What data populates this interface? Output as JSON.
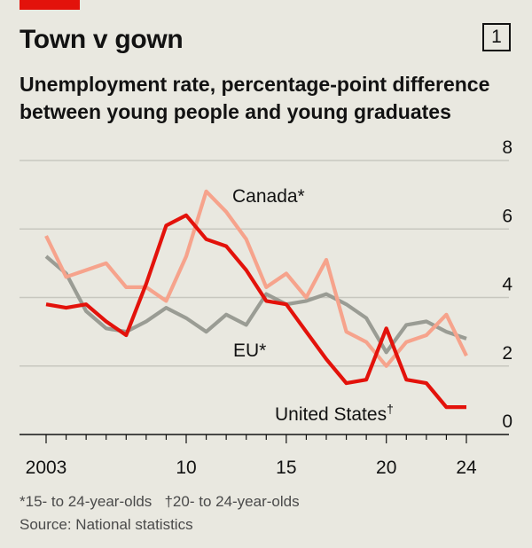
{
  "header": {
    "title": "Town v gown",
    "chart_number": "1",
    "subtitle_line1": "Unemployment rate, percentage-point difference",
    "subtitle_line2": "between young people and young graduates"
  },
  "footnotes": {
    "note": "*15- to 24-year-olds   †20- to 24-year-olds",
    "source": "Source: National statistics"
  },
  "colors": {
    "united_states": "#e3120b",
    "canada": "#f6a38c",
    "eu": "#9a9c94",
    "grid": "#c8c7bf",
    "axis": "#121212",
    "background": "#e9e8e0"
  },
  "chart_data": {
    "type": "line",
    "title": "Town v gown",
    "subtitle": "Unemployment rate, percentage-point difference between young people and young graduates",
    "x_tick_labels": [
      "2003",
      "10",
      "15",
      "20",
      "24"
    ],
    "x_tick_years": [
      2003,
      2010,
      2015,
      2020,
      2024
    ],
    "xlim": [
      2002,
      2025
    ],
    "ylim": [
      0,
      8
    ],
    "y_ticks": [
      0,
      2,
      4,
      6,
      8
    ],
    "grid": true,
    "y_axis_side": "right",
    "series": [
      {
        "name": "United States†",
        "key": "united_states",
        "x": [
          2003,
          2004,
          2005,
          2006,
          2007,
          2008,
          2009,
          2010,
          2011,
          2012,
          2013,
          2014,
          2015,
          2016,
          2017,
          2018,
          2019,
          2020,
          2021,
          2022,
          2023,
          2024
        ],
        "values": [
          3.8,
          3.7,
          3.8,
          3.3,
          2.9,
          4.4,
          6.1,
          6.4,
          5.7,
          5.5,
          4.8,
          3.9,
          3.8,
          3.0,
          2.2,
          1.5,
          1.6,
          3.1,
          1.6,
          1.5,
          0.8,
          0.8
        ]
      },
      {
        "name": "Canada*",
        "key": "canada",
        "x": [
          2003,
          2004,
          2005,
          2006,
          2007,
          2008,
          2009,
          2010,
          2011,
          2012,
          2013,
          2014,
          2015,
          2016,
          2017,
          2018,
          2019,
          2020,
          2021,
          2022,
          2023,
          2024
        ],
        "values": [
          5.8,
          4.6,
          4.8,
          5.0,
          4.3,
          4.3,
          3.9,
          5.2,
          7.1,
          6.5,
          5.7,
          4.3,
          4.7,
          4.0,
          5.1,
          3.0,
          2.7,
          2.0,
          2.7,
          2.9,
          3.5,
          2.3
        ]
      },
      {
        "name": "EU*",
        "key": "eu",
        "x": [
          2003,
          2004,
          2005,
          2006,
          2007,
          2008,
          2009,
          2010,
          2011,
          2012,
          2013,
          2014,
          2015,
          2016,
          2017,
          2018,
          2019,
          2020,
          2021,
          2022,
          2023,
          2024
        ],
        "values": [
          5.2,
          4.7,
          3.6,
          3.1,
          3.0,
          3.3,
          3.7,
          3.4,
          3.0,
          3.5,
          3.2,
          4.1,
          3.8,
          3.9,
          4.1,
          3.8,
          3.4,
          2.4,
          3.2,
          3.3,
          3.0,
          2.8
        ]
      }
    ]
  }
}
